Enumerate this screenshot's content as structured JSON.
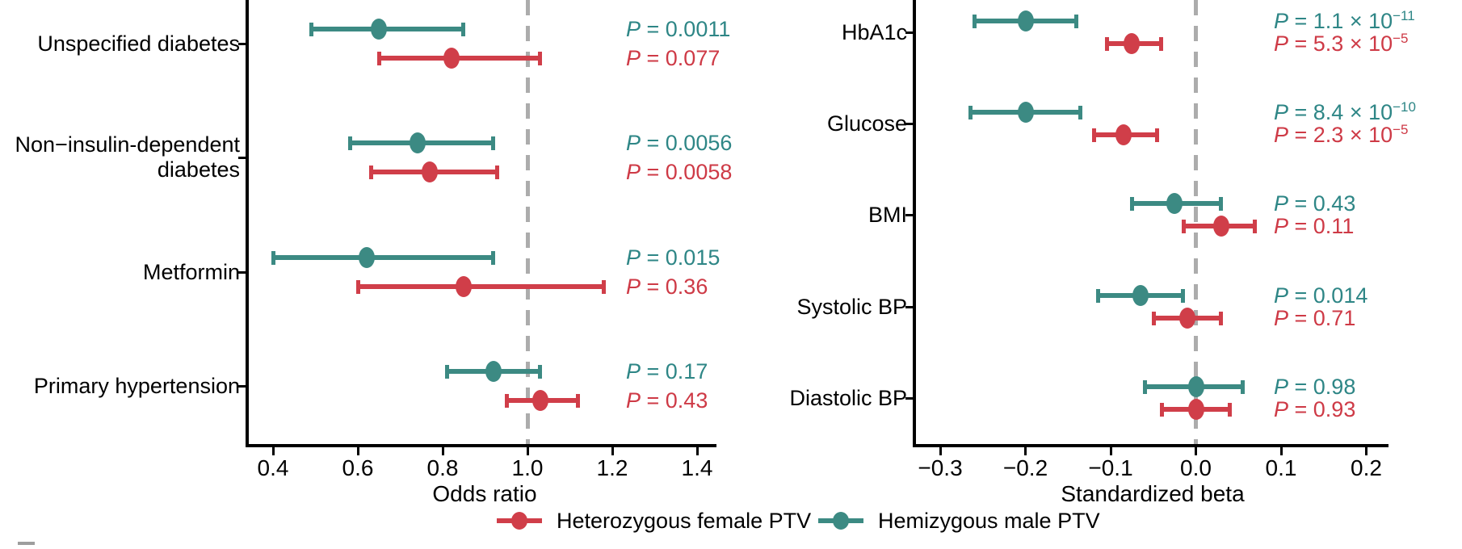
{
  "figure": {
    "background": "#ffffff",
    "p_symbol": "P",
    "colors": {
      "female_marker": "#D03E49",
      "female_text": "#CE3A46",
      "male_marker": "#3C8A83",
      "male_text": "#2E8686",
      "axis": "#000000",
      "dashed_reference": "#ACACAC",
      "corner_mark": "#9E9E9E"
    },
    "legend": [
      {
        "series": "female",
        "label": "Heterozygous female PTV"
      },
      {
        "series": "male",
        "label": "Hemizygous male PTV"
      }
    ]
  },
  "chart_data": [
    {
      "type": "forest",
      "panel": "left",
      "xlabel": "Odds ratio",
      "xticks": [
        0.4,
        0.6,
        0.8,
        1.0,
        1.2,
        1.4
      ],
      "xtick_labels": [
        "0.4",
        "0.6",
        "0.8",
        "1.0",
        "1.2",
        "1.4"
      ],
      "xlim": [
        0.34,
        1.5
      ],
      "refline": 1.0,
      "legend_position": "bottom",
      "grid": false,
      "rows": [
        {
          "label": "Unspecified diabetes",
          "label_lines": [
            "Unspecified diabetes"
          ],
          "male": {
            "est": 0.65,
            "lo": 0.49,
            "hi": 0.85,
            "p_val": " = 0.0011",
            "p_exp": ""
          },
          "female": {
            "est": 0.82,
            "lo": 0.65,
            "hi": 1.03,
            "p_val": " = 0.077",
            "p_exp": ""
          }
        },
        {
          "label": "Non−insulin-dependent diabetes",
          "label_lines": [
            "Non−insulin-dependent",
            "diabetes"
          ],
          "male": {
            "est": 0.74,
            "lo": 0.58,
            "hi": 0.92,
            "p_val": " = 0.0056",
            "p_exp": ""
          },
          "female": {
            "est": 0.77,
            "lo": 0.63,
            "hi": 0.93,
            "p_val": " = 0.0058",
            "p_exp": ""
          }
        },
        {
          "label": "Metformin",
          "label_lines": [
            "Metformin"
          ],
          "male": {
            "est": 0.62,
            "lo": 0.4,
            "hi": 0.92,
            "p_val": " = 0.015",
            "p_exp": ""
          },
          "female": {
            "est": 0.85,
            "lo": 0.6,
            "hi": 1.18,
            "p_val": " = 0.36",
            "p_exp": ""
          }
        },
        {
          "label": "Primary hypertension",
          "label_lines": [
            "Primary hypertension"
          ],
          "male": {
            "est": 0.92,
            "lo": 0.81,
            "hi": 1.03,
            "p_val": " = 0.17",
            "p_exp": ""
          },
          "female": {
            "est": 1.03,
            "lo": 0.95,
            "hi": 1.12,
            "p_val": " = 0.43",
            "p_exp": ""
          }
        }
      ]
    },
    {
      "type": "forest",
      "panel": "right",
      "xlabel": "Standardized beta",
      "xticks": [
        -0.3,
        -0.2,
        -0.1,
        0.0,
        0.1,
        0.2
      ],
      "xtick_labels": [
        "−0.3",
        "−0.2",
        "−0.1",
        "0.0",
        "0.1",
        "0.2"
      ],
      "xlim": [
        -0.33,
        0.23
      ],
      "refline": 0.0,
      "legend_position": "bottom",
      "grid": false,
      "rows": [
        {
          "label": "HbA1c",
          "label_lines": [
            "HbA1c"
          ],
          "male": {
            "est": -0.2,
            "lo": -0.26,
            "hi": -0.14,
            "p_val": " = 1.1 × 10",
            "p_exp": "−11"
          },
          "female": {
            "est": -0.075,
            "lo": -0.105,
            "hi": -0.04,
            "p_val": " = 5.3 × 10",
            "p_exp": "−5"
          }
        },
        {
          "label": "Glucose",
          "label_lines": [
            "Glucose"
          ],
          "male": {
            "est": -0.2,
            "lo": -0.265,
            "hi": -0.135,
            "p_val": " = 8.4 × 10",
            "p_exp": "−10"
          },
          "female": {
            "est": -0.085,
            "lo": -0.12,
            "hi": -0.045,
            "p_val": " = 2.3 × 10",
            "p_exp": "−5"
          }
        },
        {
          "label": "BMI",
          "label_lines": [
            "BMI"
          ],
          "male": {
            "est": -0.025,
            "lo": -0.075,
            "hi": 0.03,
            "p_val": " = 0.43",
            "p_exp": ""
          },
          "female": {
            "est": 0.03,
            "lo": -0.015,
            "hi": 0.07,
            "p_val": " = 0.11",
            "p_exp": ""
          }
        },
        {
          "label": "Systolic BP",
          "label_lines": [
            "Systolic BP"
          ],
          "male": {
            "est": -0.065,
            "lo": -0.115,
            "hi": -0.015,
            "p_val": " = 0.014",
            "p_exp": ""
          },
          "female": {
            "est": -0.01,
            "lo": -0.05,
            "hi": 0.03,
            "p_val": " = 0.71",
            "p_exp": ""
          }
        },
        {
          "label": "Diastolic BP",
          "label_lines": [
            "Diastolic BP"
          ],
          "male": {
            "est": 0.0,
            "lo": -0.06,
            "hi": 0.055,
            "p_val": " = 0.98",
            "p_exp": ""
          },
          "female": {
            "est": 0.0,
            "lo": -0.04,
            "hi": 0.04,
            "p_val": " = 0.93",
            "p_exp": ""
          }
        }
      ]
    }
  ]
}
